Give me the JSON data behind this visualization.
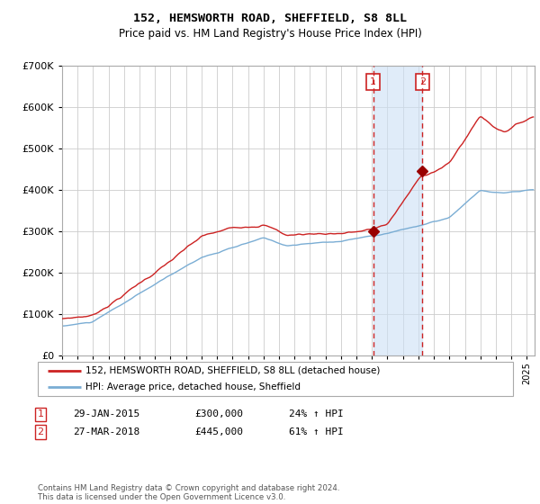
{
  "title1": "152, HEMSWORTH ROAD, SHEFFIELD, S8 8LL",
  "title2": "Price paid vs. HM Land Registry's House Price Index (HPI)",
  "legend_line1": "152, HEMSWORTH ROAD, SHEFFIELD, S8 8LL (detached house)",
  "legend_line2": "HPI: Average price, detached house, Sheffield",
  "sale1_date": "29-JAN-2015",
  "sale1_price": 300000,
  "sale1_pct": "24% ↑ HPI",
  "sale1_year": 2015.08,
  "sale2_date": "27-MAR-2018",
  "sale2_price": 445000,
  "sale2_pct": "61% ↑ HPI",
  "sale2_year": 2018.25,
  "hpi_line_color": "#7aadd4",
  "price_line_color": "#cc2222",
  "dot_color": "#990000",
  "background_color": "#ffffff",
  "grid_color": "#cccccc",
  "footnote": "Contains HM Land Registry data © Crown copyright and database right 2024.\nThis data is licensed under the Open Government Licence v3.0.",
  "ylim": [
    0,
    700000
  ],
  "xlim_start": 1995.0,
  "xlim_end": 2025.5
}
